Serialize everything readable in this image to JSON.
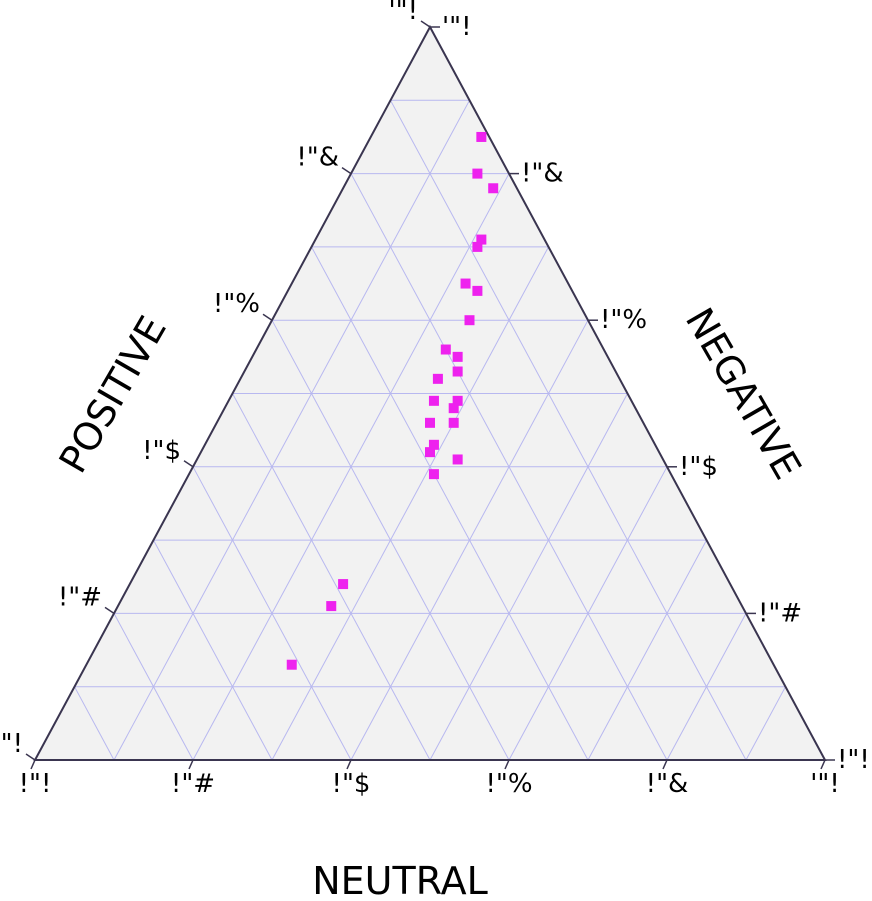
{
  "chart_data": {
    "type": "scatter",
    "subtype": "ternary",
    "axes": {
      "bottom": {
        "label": "NEUTRAL",
        "tick_labels": [
          "!\"!",
          "!\"#",
          "!\"$",
          "!\"%",
          "!\"&",
          "'\"!"
        ]
      },
      "left": {
        "label": "POSITIVE",
        "tick_labels": [
          "'\"!",
          "!\"&",
          "!\"%",
          "!\"$",
          "!\"#",
          "!\"!"
        ]
      },
      "right": {
        "label": "NEGATIVE",
        "tick_labels": [
          "!\"!",
          "!\"#",
          "!\"$",
          "!\"%",
          "!\"&",
          "'\"!"
        ]
      }
    },
    "tick_values": [
      0,
      0.2,
      0.4,
      0.6,
      0.8,
      1.0
    ],
    "grid": true,
    "grid_step": 0.1,
    "colors": {
      "background": "#f2f2f2",
      "grid": "#b8b8f0",
      "outline": "#3a3550",
      "marker": "#ee22ee"
    },
    "point_fields": [
      "neutral",
      "positive",
      "negative"
    ],
    "points": [
      [
        0.26,
        0.61,
        0.13
      ],
      [
        0.27,
        0.52,
        0.21
      ],
      [
        0.27,
        0.49,
        0.24
      ],
      [
        0.31,
        0.3,
        0.39
      ],
      [
        0.29,
        0.29,
        0.42
      ],
      [
        0.29,
        0.28,
        0.43
      ],
      [
        0.27,
        0.27,
        0.46
      ],
      [
        0.33,
        0.26,
        0.41
      ],
      [
        0.26,
        0.25,
        0.49
      ],
      [
        0.3,
        0.24,
        0.46
      ],
      [
        0.29,
        0.23,
        0.48
      ],
      [
        0.25,
        0.23,
        0.52
      ],
      [
        0.29,
        0.22,
        0.49
      ],
      [
        0.27,
        0.2,
        0.53
      ],
      [
        0.24,
        0.2,
        0.56
      ],
      [
        0.26,
        0.19,
        0.55
      ],
      [
        0.25,
        0.15,
        0.6
      ],
      [
        0.22,
        0.13,
        0.65
      ],
      [
        0.24,
        0.12,
        0.64
      ],
      [
        0.21,
        0.09,
        0.7
      ],
      [
        0.21,
        0.08,
        0.71
      ],
      [
        0.16,
        0.04,
        0.8
      ],
      [
        0.19,
        0.03,
        0.78
      ],
      [
        0.14,
        0.01,
        0.85
      ]
    ]
  }
}
